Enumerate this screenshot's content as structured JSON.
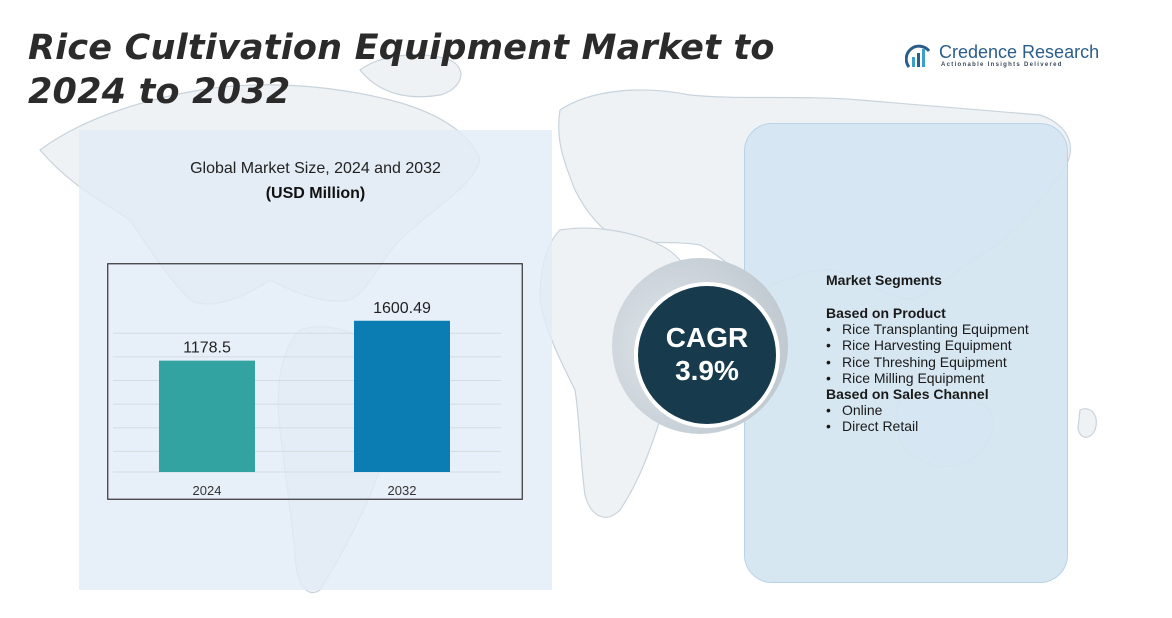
{
  "header": {
    "title": "Rice Cultivation Equipment Market to 2024 to 2032"
  },
  "logo": {
    "name": "Credence Research",
    "tagline": "Actionable Insights Delivered",
    "icon": "bar-chart-arc-icon"
  },
  "chart_data": {
    "type": "bar",
    "title": "Global Market Size, 2024 and 2032",
    "unit": "(USD Million)",
    "categories": [
      "2024",
      "2032"
    ],
    "values": [
      1178.5,
      1600.49
    ],
    "value_labels": [
      "1178.5",
      "1600.49"
    ],
    "colors": [
      "#33a3a2",
      "#0b7db3"
    ],
    "ylim": [
      0,
      2000
    ],
    "grid": true
  },
  "cagr": {
    "label": "CAGR",
    "value": "3.9%"
  },
  "segments": {
    "heading": "Market Segments",
    "groups": [
      {
        "title": "Based on Product",
        "items": [
          "Rice Transplanting Equipment",
          "Rice Harvesting Equipment",
          "Rice Threshing Equipment",
          "Rice Milling Equipment"
        ]
      },
      {
        "title": "Based on Sales Channel",
        "items": [
          "Online",
          "Direct Retail"
        ]
      }
    ]
  },
  "colors": {
    "panel": "#e2ecf6",
    "cagr_circle": "#173a4c",
    "title_text": "#2b2b2b",
    "brand": "#2b5d8a"
  }
}
